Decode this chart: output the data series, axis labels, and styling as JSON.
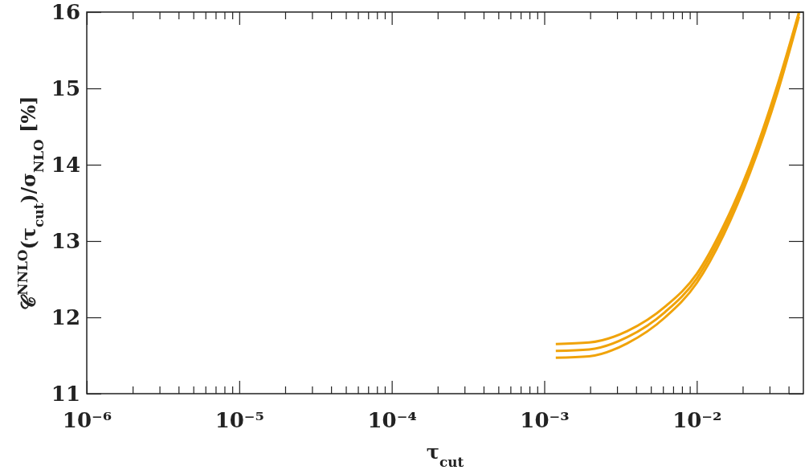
{
  "chart_data": {
    "type": "line",
    "xlabel": "τ$_{cut}$",
    "ylabel": "𝒞$^{NNLO}$(τ$_{cut}$)/σ$_{NLO}$ [%]",
    "log": "x",
    "x": [
      0.00119,
      0.00197,
      0.0035,
      0.0062,
      0.01,
      0.015,
      0.0224,
      0.0339,
      0.0468
    ],
    "series": [
      {
        "color": "#f0a30a",
        "values": [
          11.56,
          11.58,
          11.74,
          12.07,
          12.51,
          13.14,
          13.95,
          15.0,
          15.98
        ]
      },
      {
        "color": "#f0a30a",
        "values": [
          11.47,
          11.49,
          11.66,
          12.0,
          12.45,
          13.08,
          13.9,
          14.95,
          15.94
        ]
      },
      {
        "color": "#f0a30a",
        "values": [
          11.65,
          11.67,
          11.82,
          12.14,
          12.57,
          13.2,
          14.0,
          15.05,
          16.0
        ]
      }
    ],
    "xlim": [
      1e-06,
      0.05
    ],
    "ylim": [
      11,
      16
    ],
    "xticks": [
      {
        "value": 1e-06,
        "label": "10⁻⁶"
      },
      {
        "value": 2e-06,
        "label": null
      },
      {
        "value": 3e-06,
        "label": null
      },
      {
        "value": 4e-06,
        "label": null
      },
      {
        "value": 5e-06,
        "label": null
      },
      {
        "value": 6e-06,
        "label": null
      },
      {
        "value": 7e-06,
        "label": null
      },
      {
        "value": 8e-06,
        "label": null
      },
      {
        "value": 9e-06,
        "label": null
      },
      {
        "value": 1e-05,
        "label": "10⁻⁵"
      },
      {
        "value": 2e-05,
        "label": null
      },
      {
        "value": 3e-05,
        "label": null
      },
      {
        "value": 4e-05,
        "label": null
      },
      {
        "value": 5e-05,
        "label": null
      },
      {
        "value": 6e-05,
        "label": null
      },
      {
        "value": 7e-05,
        "label": null
      },
      {
        "value": 8e-05,
        "label": null
      },
      {
        "value": 9e-05,
        "label": null
      },
      {
        "value": 0.0001,
        "label": "10⁻⁴"
      },
      {
        "value": 0.0002,
        "label": null
      },
      {
        "value": 0.0003,
        "label": null
      },
      {
        "value": 0.0004,
        "label": null
      },
      {
        "value": 0.0005,
        "label": null
      },
      {
        "value": 0.0006,
        "label": null
      },
      {
        "value": 0.0007,
        "label": null
      },
      {
        "value": 0.0008,
        "label": null
      },
      {
        "value": 0.0009,
        "label": null
      },
      {
        "value": 0.001,
        "label": "10⁻³"
      },
      {
        "value": 0.002,
        "label": null
      },
      {
        "value": 0.003,
        "label": null
      },
      {
        "value": 0.004,
        "label": null
      },
      {
        "value": 0.005,
        "label": null
      },
      {
        "value": 0.006,
        "label": null
      },
      {
        "value": 0.007,
        "label": null
      },
      {
        "value": 0.008,
        "label": null
      },
      {
        "value": 0.009,
        "label": null
      },
      {
        "value": 0.01,
        "label": "10⁻²"
      },
      {
        "value": 0.02,
        "label": null
      },
      {
        "value": 0.03,
        "label": null
      },
      {
        "value": 0.04,
        "label": null
      }
    ],
    "yticks": [
      11,
      12,
      13,
      14,
      15,
      16
    ]
  }
}
